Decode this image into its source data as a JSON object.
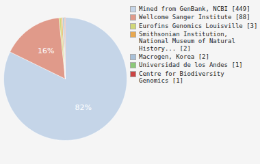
{
  "chart_data": {
    "type": "pie",
    "categories": [
      "Mined from GenBank, NCBI [449]",
      "Wellcome Sanger Institute [88]",
      "Eurofins Genomics Louisville [3]",
      "Smithsonian Institution,\nNational Museum of Natural\nHistory... [2]",
      "Macrogen, Korea [2]",
      "Universidad de los Andes [1]",
      "Centre for Biodiversity\nGenomics [1]"
    ],
    "values": [
      449,
      88,
      3,
      2,
      2,
      1,
      1
    ],
    "colors": [
      "#c5d5e8",
      "#e09a8a",
      "#d0d878",
      "#e8a850",
      "#a8c0d8",
      "#8cc878",
      "#cc4444"
    ],
    "annotations": [
      "82%",
      "16%",
      null,
      null,
      null,
      null,
      null
    ],
    "legend": "right"
  }
}
